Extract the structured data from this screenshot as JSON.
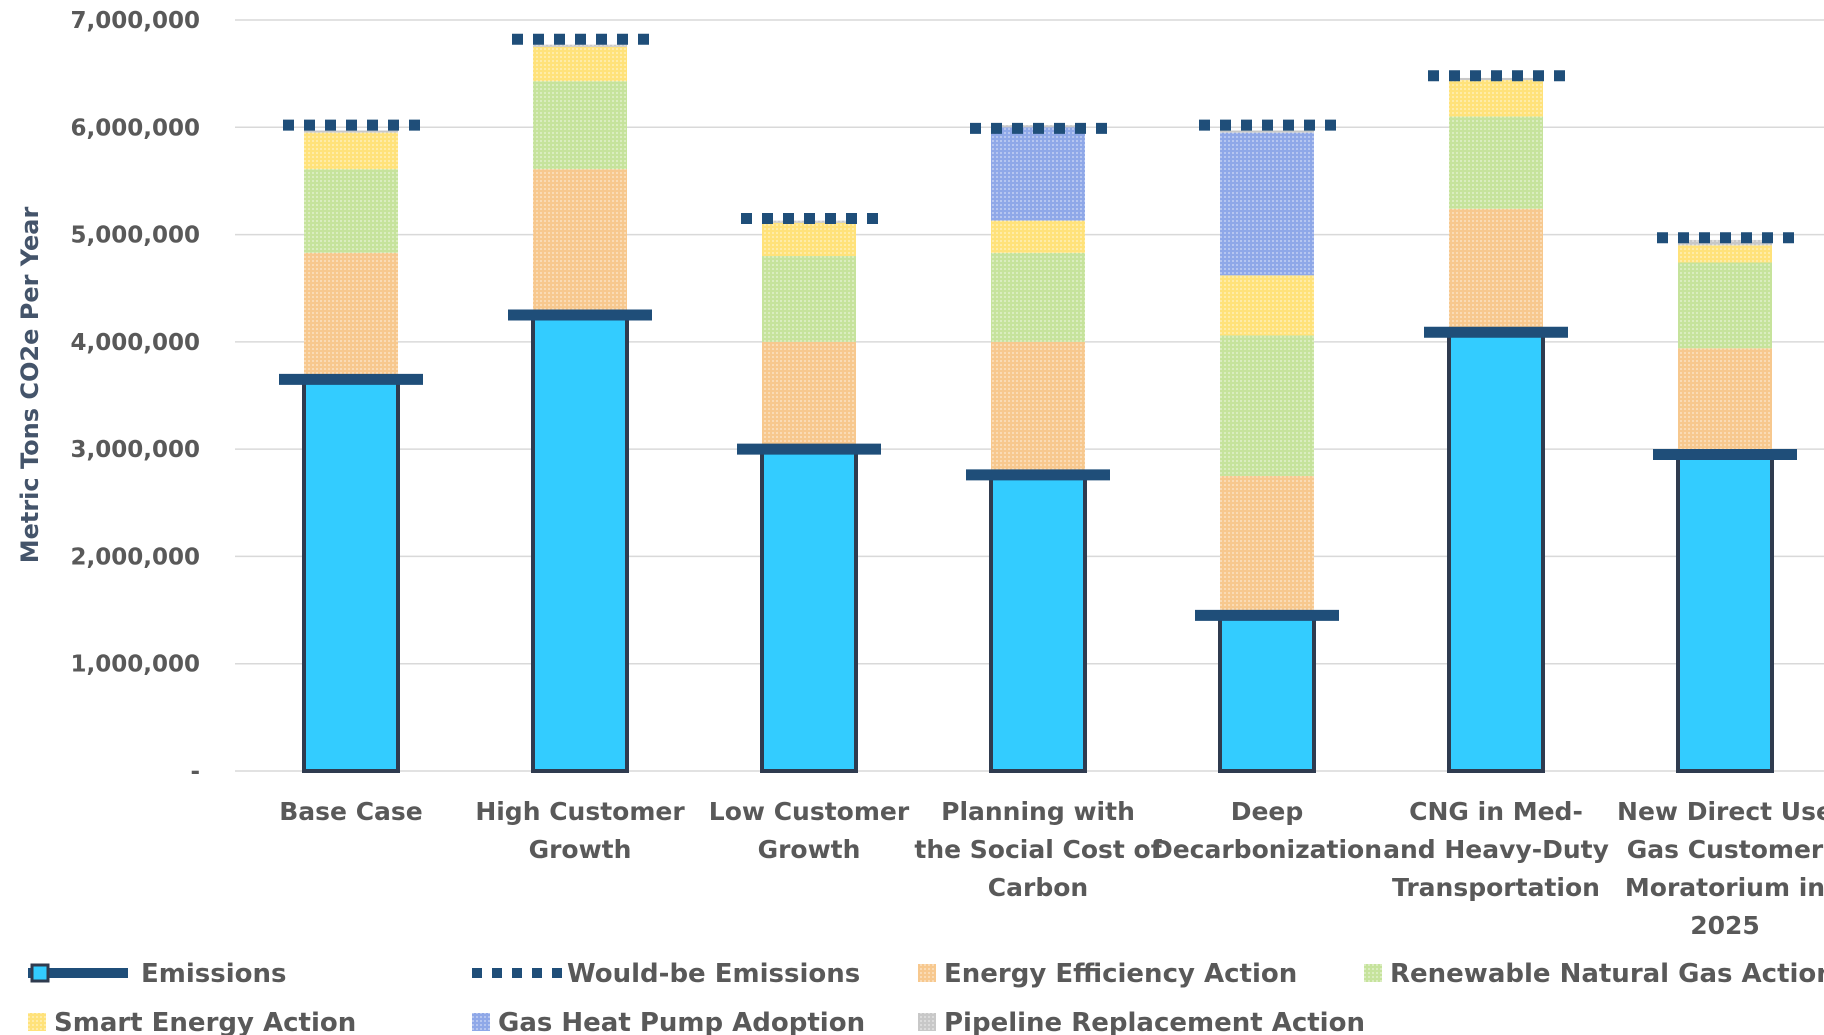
{
  "chart_data": {
    "type": "bar",
    "ylabel": "Metric Tons CO2e Per Year",
    "ylim": [
      0,
      7000000
    ],
    "y_ticks": [
      "-",
      "1,000,000",
      "2,000,000",
      "3,000,000",
      "4,000,000",
      "5,000,000",
      "6,000,000",
      "7,000,000"
    ],
    "grid": true,
    "legend_position": "bottom",
    "categories": [
      [
        "Base Case"
      ],
      [
        "High Customer",
        "Growth"
      ],
      [
        "Low Customer",
        "Growth"
      ],
      [
        "Planning with",
        "the Social Cost of",
        "Carbon"
      ],
      [
        "Deep",
        "Decarbonization"
      ],
      [
        "CNG in Med-",
        "and Heavy-Duty",
        "Transportation"
      ],
      [
        "New Direct Use",
        "Gas Customer",
        "Moratorium in",
        "2025"
      ]
    ],
    "series": [
      {
        "name": "Emissions",
        "color": "#33CCFF",
        "values": [
          3650000,
          4250000,
          3000000,
          2760000,
          1450000,
          4090000,
          2950000
        ]
      },
      {
        "name": "Energy Efficiency Action",
        "color": "#F7C88E",
        "values": [
          1180000,
          1360000,
          1000000,
          1240000,
          1300000,
          1150000,
          990000
        ]
      },
      {
        "name": "Renewable Natural Gas Action",
        "color": "#C6E39C",
        "values": [
          780000,
          820000,
          800000,
          830000,
          1310000,
          860000,
          800000
        ]
      },
      {
        "name": "Smart Energy Action",
        "color": "#FFE27A",
        "values": [
          340000,
          320000,
          310000,
          300000,
          560000,
          340000,
          160000
        ]
      },
      {
        "name": "Gas Heat Pump Adoption",
        "color": "#8FA8E8",
        "values": [
          0,
          0,
          0,
          870000,
          1330000,
          0,
          0
        ]
      },
      {
        "name": "Pipeline Replacement Action",
        "color": "#C8C8C8",
        "values": [
          20000,
          20000,
          20000,
          20000,
          20000,
          20000,
          50000
        ]
      }
    ],
    "would_be": {
      "name": "Would-be Emissions",
      "values": [
        6020000,
        6820000,
        5150000,
        5990000,
        6020000,
        6480000,
        4970000
      ]
    },
    "legend_rows": [
      [
        "Emissions",
        "Would-be Emissions",
        "Energy Efficiency Action",
        "Renewable Natural Gas Action"
      ],
      [
        "Smart Energy Action",
        "Gas Heat Pump Adoption",
        "Pipeline Replacement Action"
      ]
    ],
    "colors": {
      "emissions_line": "#1F4E79",
      "bar_outline": "#2F3B4F",
      "grid": "#D9D9D9"
    }
  }
}
